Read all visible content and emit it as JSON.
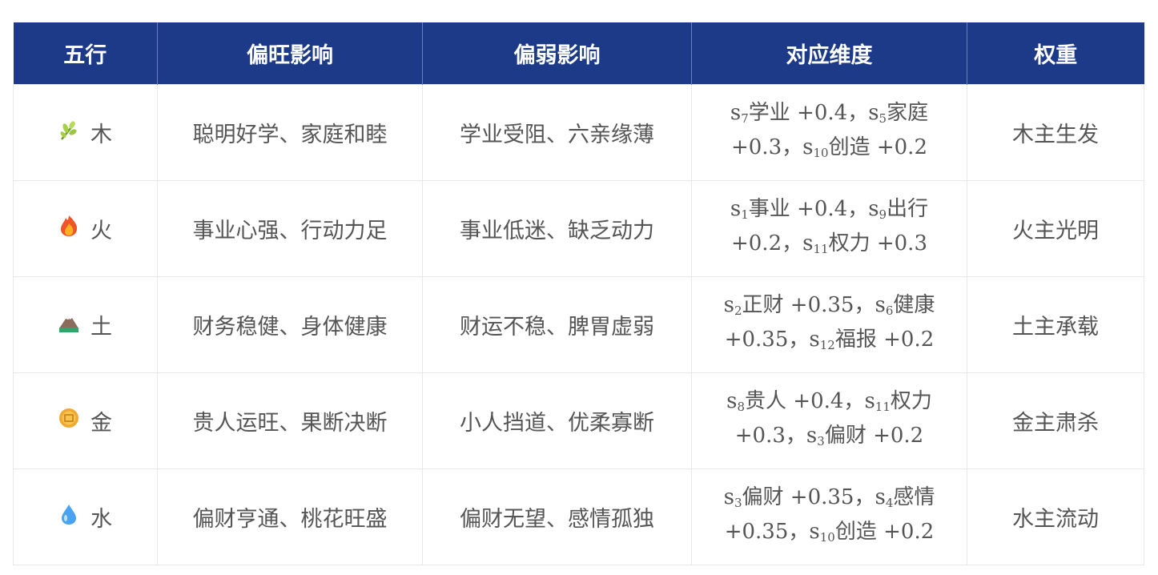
{
  "headers": [
    "五行",
    "偏旺影响",
    "偏弱影响",
    "对应维度",
    "权重"
  ],
  "colors": {
    "header_bg": "#1c3a88",
    "text": "#555555",
    "border": "#e6e8ec"
  },
  "rows": [
    {
      "icon": "herb-icon",
      "element": "木",
      "strong": "聪明好学、家庭和睦",
      "weak": "学业受阻、六亲缘薄",
      "dims": [
        {
          "v": "s",
          "sub": "7",
          "label": "学业",
          "val": "+0.4"
        },
        {
          "v": "s",
          "sub": "5",
          "label": "家庭",
          "val": "+0.3"
        },
        {
          "v": "s",
          "sub": "10",
          "label": "创造",
          "val": "+0.2"
        }
      ],
      "weight": "木主生发"
    },
    {
      "icon": "fire-icon",
      "element": "火",
      "strong": "事业心强、行动力足",
      "weak": "事业低迷、缺乏动力",
      "dims": [
        {
          "v": "s",
          "sub": "1",
          "label": "事业",
          "val": "+0.4"
        },
        {
          "v": "s",
          "sub": "9",
          "label": "出行",
          "val": "+0.2"
        },
        {
          "v": "s",
          "sub": "11",
          "label": "权力",
          "val": "+0.3"
        }
      ],
      "weight": "火主光明"
    },
    {
      "icon": "mountain-icon",
      "element": "土",
      "strong": "财务稳健、身体健康",
      "weak": "财运不稳、脾胃虚弱",
      "dims": [
        {
          "v": "s",
          "sub": "2",
          "label": "正财",
          "val": "+0.35"
        },
        {
          "v": "s",
          "sub": "6",
          "label": "健康",
          "val": "+0.35"
        },
        {
          "v": "s",
          "sub": "12",
          "label": "福报",
          "val": "+0.2"
        }
      ],
      "weight": "土主承载"
    },
    {
      "icon": "coin-icon",
      "element": "金",
      "strong": "贵人运旺、果断决断",
      "weak": "小人挡道、优柔寡断",
      "dims": [
        {
          "v": "s",
          "sub": "8",
          "label": "贵人",
          "val": "+0.4"
        },
        {
          "v": "s",
          "sub": "11",
          "label": "权力",
          "val": "+0.3"
        },
        {
          "v": "s",
          "sub": "3",
          "label": "偏财",
          "val": "+0.2"
        }
      ],
      "weight": "金主肃杀"
    },
    {
      "icon": "droplet-icon",
      "element": "水",
      "strong": "偏财亨通、桃花旺盛",
      "weak": "偏财无望、感情孤独",
      "dims": [
        {
          "v": "s",
          "sub": "3",
          "label": "偏财",
          "val": "+0.35"
        },
        {
          "v": "s",
          "sub": "4",
          "label": "感情",
          "val": "+0.35"
        },
        {
          "v": "s",
          "sub": "10",
          "label": "创造",
          "val": "+0.2"
        }
      ],
      "weight": "水主流动"
    }
  ]
}
